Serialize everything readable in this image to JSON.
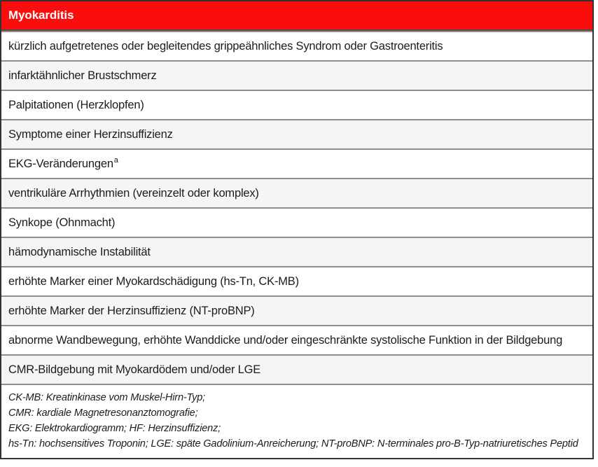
{
  "table": {
    "header": "Myokarditis",
    "rows": [
      {
        "text": "kürzlich aufgetretenes oder begleitendes grippeähnliches Syndrom oder Gastroenteritis"
      },
      {
        "text": "infarktähnlicher Brustschmerz"
      },
      {
        "text": "Palpitationen (Herzklopfen)"
      },
      {
        "text": "Symptome einer Herzinsuffizienz"
      },
      {
        "text": "EKG-Veränderungen",
        "sup": "a"
      },
      {
        "text": "ventrikuläre Arrhythmien (vereinzelt oder komplex)"
      },
      {
        "text": "Synkope (Ohnmacht)"
      },
      {
        "text": "hämodynamische Instabilität"
      },
      {
        "text": "erhöhte Marker einer Myokardschädigung (hs-Tn, CK-MB)"
      },
      {
        "text": "erhöhte Marker der Herzinsuffizienz (NT-proBNP)"
      },
      {
        "text": "abnorme Wandbewegung, erhöhte Wanddicke und/oder eingeschränkte systolische Funktion in der Bildgebung"
      },
      {
        "text": "CMR-Bildgebung mit Myokardödem und/oder LGE"
      }
    ],
    "footnotes": [
      "CK-MB: Kreatinkinase vom Muskel-Hirn-Typ;",
      "CMR: kardiale Magnetresonanztomografie;",
      "EKG: Elektrokardiogramm; HF: Herzinsuffizienz;",
      "hs-Tn: hochsensitives Troponin; LGE: späte Gadolinium-Anreicherung; NT-proBNP: N-terminales pro-B-Typ-natriuretisches Peptid"
    ]
  },
  "colors": {
    "header_bg": "#f90d0d",
    "header_text": "#ffffff",
    "row_bg": "#ffffff",
    "row_alt_bg": "#f5f5f5",
    "separator": "#8f8f8f",
    "outer_border": "#333333",
    "text": "#1c1c1c"
  }
}
